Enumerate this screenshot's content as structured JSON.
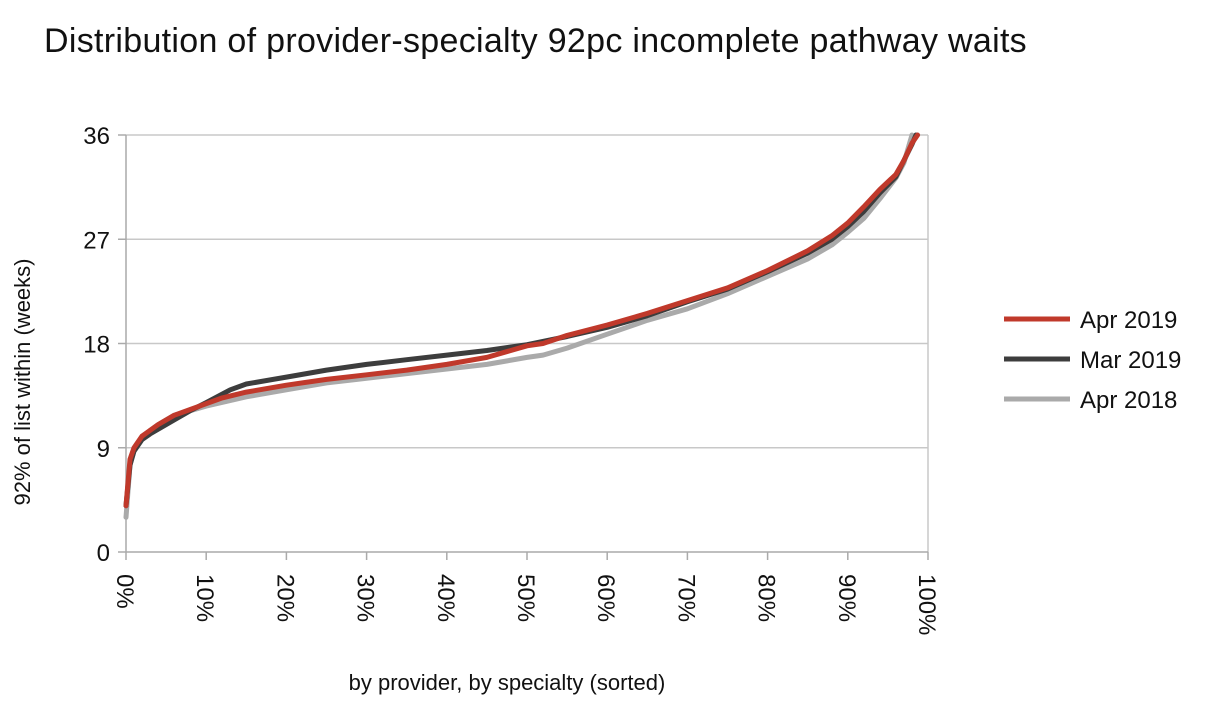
{
  "chart_data": {
    "type": "line",
    "title": "Distribution of provider-specialty 92pc incomplete pathway waits",
    "xlabel": "by provider, by specialty (sorted)",
    "ylabel": "92% of list within (weeks)",
    "xlim": [
      0,
      100
    ],
    "ylim": [
      0,
      36
    ],
    "x_ticks": [
      0,
      10,
      20,
      30,
      40,
      50,
      60,
      70,
      80,
      90,
      100
    ],
    "x_tick_labels": [
      "0%",
      "10%",
      "20%",
      "30%",
      "40%",
      "50%",
      "60%",
      "70%",
      "80%",
      "90%",
      "100%"
    ],
    "y_ticks": [
      0,
      9,
      18,
      27,
      36
    ],
    "y_tick_labels": [
      "0",
      "9",
      "18",
      "27",
      "36"
    ],
    "grid": "horizontal",
    "legend_position": "right",
    "series": [
      {
        "name": "Apr 2019",
        "color": "#c0392b",
        "x": [
          0,
          0.5,
          1,
          2,
          3,
          4,
          6,
          8,
          10,
          12,
          15,
          20,
          25,
          30,
          35,
          40,
          45,
          50,
          52,
          55,
          60,
          65,
          70,
          75,
          80,
          85,
          88,
          90,
          92,
          94,
          96,
          97,
          98,
          98.7
        ],
        "y": [
          4,
          8,
          9,
          10,
          10.5,
          11,
          11.8,
          12.3,
          12.8,
          13.3,
          13.8,
          14.4,
          14.9,
          15.3,
          15.7,
          16.2,
          16.8,
          17.8,
          18,
          18.7,
          19.6,
          20.6,
          21.7,
          22.8,
          24.3,
          26,
          27.3,
          28.4,
          29.8,
          31.3,
          32.6,
          33.8,
          35.3,
          36
        ]
      },
      {
        "name": "Mar 2019",
        "color": "#3d3d3d",
        "x": [
          0,
          0.5,
          1,
          2,
          3,
          4,
          6,
          8,
          10,
          13,
          15,
          20,
          25,
          30,
          35,
          40,
          45,
          50,
          55,
          60,
          65,
          70,
          75,
          80,
          85,
          88,
          90,
          92,
          94,
          96,
          97,
          98,
          98.5
        ],
        "y": [
          4,
          7.5,
          8.7,
          9.7,
          10.2,
          10.6,
          11.4,
          12.2,
          12.9,
          14,
          14.5,
          15.1,
          15.7,
          16.2,
          16.6,
          17,
          17.4,
          17.9,
          18.6,
          19.4,
          20.4,
          21.6,
          22.7,
          24.2,
          25.8,
          27,
          28.1,
          29.4,
          31,
          32.4,
          33.8,
          35.2,
          36
        ]
      },
      {
        "name": "Apr 2018",
        "color": "#aaaaaa",
        "x": [
          0,
          0.5,
          1,
          2,
          3,
          4,
          6,
          8,
          10,
          15,
          20,
          25,
          30,
          35,
          40,
          45,
          50,
          52,
          55,
          60,
          65,
          70,
          75,
          80,
          85,
          88,
          90,
          92,
          94,
          96,
          97,
          98
        ],
        "y": [
          3,
          7.5,
          8.8,
          9.9,
          10.5,
          11,
          11.8,
          12.2,
          12.6,
          13.4,
          14,
          14.6,
          15,
          15.4,
          15.8,
          16.2,
          16.8,
          17,
          17.6,
          18.8,
          20,
          21,
          22.3,
          23.8,
          25.3,
          26.5,
          27.6,
          28.8,
          30.5,
          32.3,
          33.6,
          36
        ]
      }
    ]
  }
}
